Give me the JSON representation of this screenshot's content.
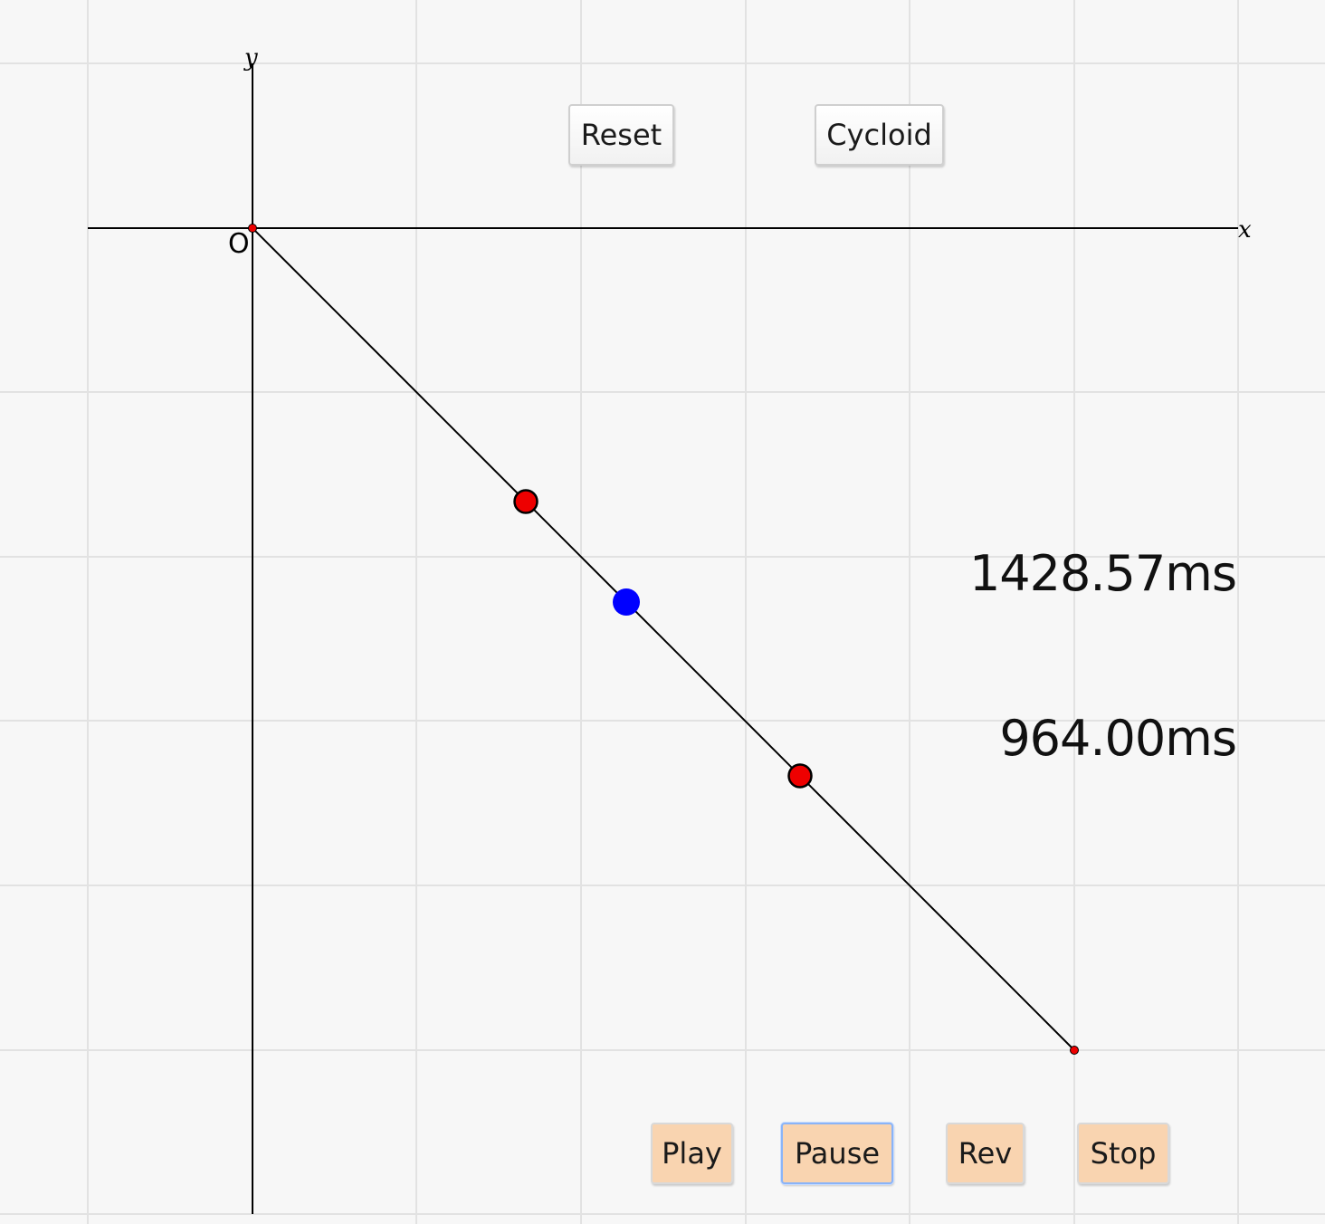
{
  "axes": {
    "x_label": "x",
    "y_label": "y",
    "origin_label": "O"
  },
  "buttons": {
    "reset": "Reset",
    "cycloid": "Cycloid",
    "play": "Play",
    "pause": "Pause",
    "rev": "Rev",
    "stop": "Stop"
  },
  "readouts": {
    "time_1": "1428.57ms",
    "time_2": "964.00ms"
  },
  "colors": {
    "background": "#f7f7f7",
    "grid": "#e2e2e2",
    "axis": "#000000",
    "control_point": "#ee0000",
    "ball": "#0000ff",
    "peach_button": "#f9d4b0"
  }
}
